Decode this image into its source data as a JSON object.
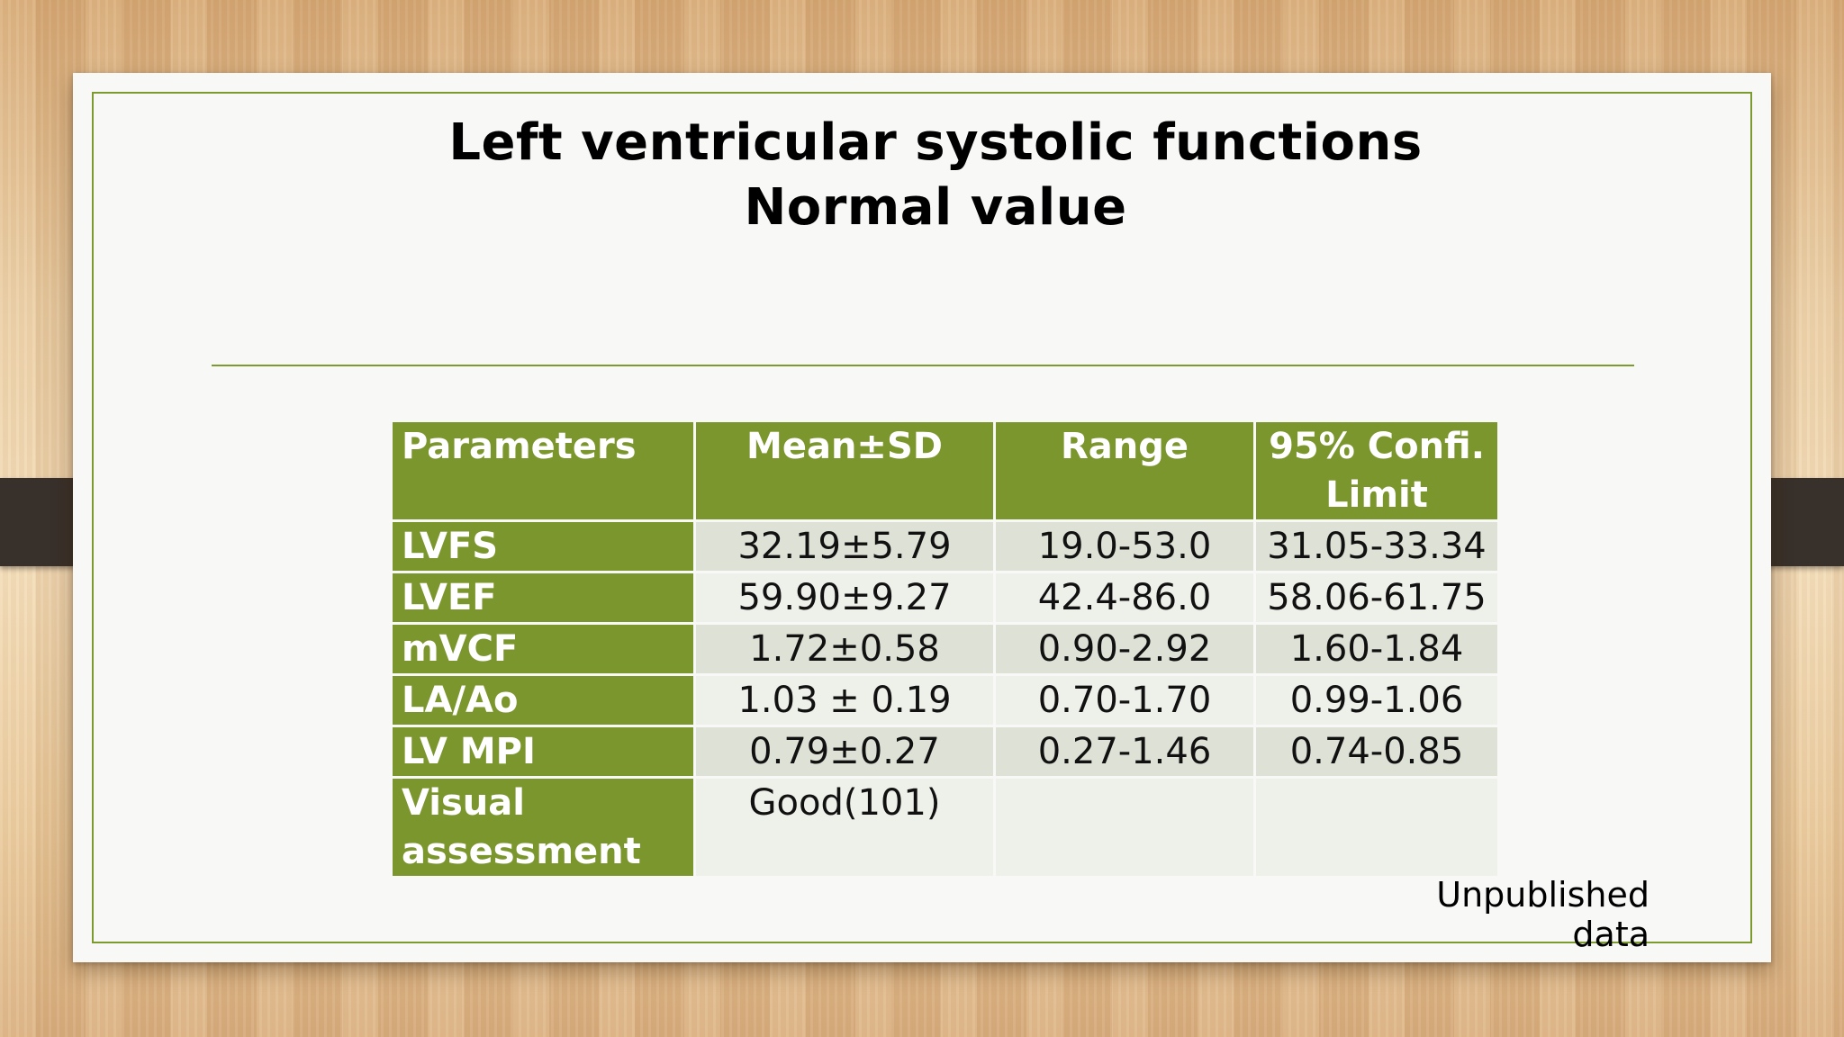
{
  "title": {
    "line1": "Left ventricular systolic functions",
    "line2": "Normal value"
  },
  "table": {
    "headers": [
      "Parameters",
      "Mean±SD",
      "Range",
      "95% Confi. Limit"
    ],
    "rows": [
      {
        "parameter": "LVFS",
        "mean_sd": "32.19±5.79",
        "range": "19.0-53.0",
        "ci": "31.05-33.34"
      },
      {
        "parameter": "LVEF",
        "mean_sd": "59.90±9.27",
        "range": "42.4-86.0",
        "ci": "58.06-61.75"
      },
      {
        "parameter": "mVCF",
        "mean_sd": "1.72±0.58",
        "range": "0.90-2.92",
        "ci": "1.60-1.84"
      },
      {
        "parameter": "LA/Ao",
        "mean_sd": "1.03 ± 0.19",
        "range": "0.70-1.70",
        "ci": "0.99-1.06"
      },
      {
        "parameter": "LV MPI",
        "mean_sd": "0.79±0.27",
        "range": "0.27-1.46",
        "ci": "0.74-0.85"
      },
      {
        "parameter": "Visual assessment",
        "mean_sd": "Good(101)",
        "range": "",
        "ci": ""
      }
    ]
  },
  "footnote": "Unpublished data",
  "colors": {
    "accent_green": "#7c962e",
    "row_shade_dark": "#dee2d6",
    "row_shade_light": "#eef0ea",
    "slide_background": "#f8f8f6"
  }
}
